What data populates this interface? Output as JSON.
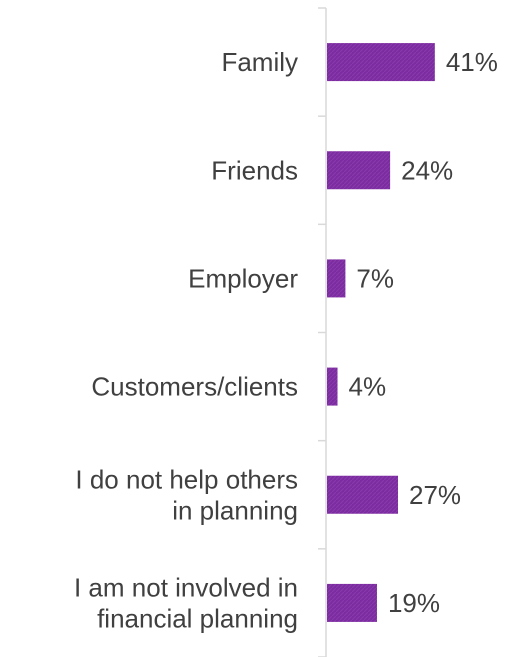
{
  "chart_data": {
    "type": "bar",
    "orientation": "horizontal",
    "categories": [
      [
        "Family"
      ],
      [
        "Friends"
      ],
      [
        "Employer"
      ],
      [
        "Customers/clients"
      ],
      [
        "I do not help others",
        "in planning"
      ],
      [
        "I am not involved in",
        "financial planning"
      ]
    ],
    "values": [
      41,
      24,
      7,
      4,
      27,
      19
    ],
    "value_labels": [
      "41%",
      "24%",
      "7%",
      "4%",
      "27%",
      "19%"
    ],
    "unit": "%",
    "xlim": [
      0,
      100
    ],
    "grid": false,
    "legend": "none",
    "bar_color": "#7B2C9E",
    "bar_color_light": "#9A48BE",
    "axis_color": "#D9D9D9",
    "text_color": "#404040"
  }
}
